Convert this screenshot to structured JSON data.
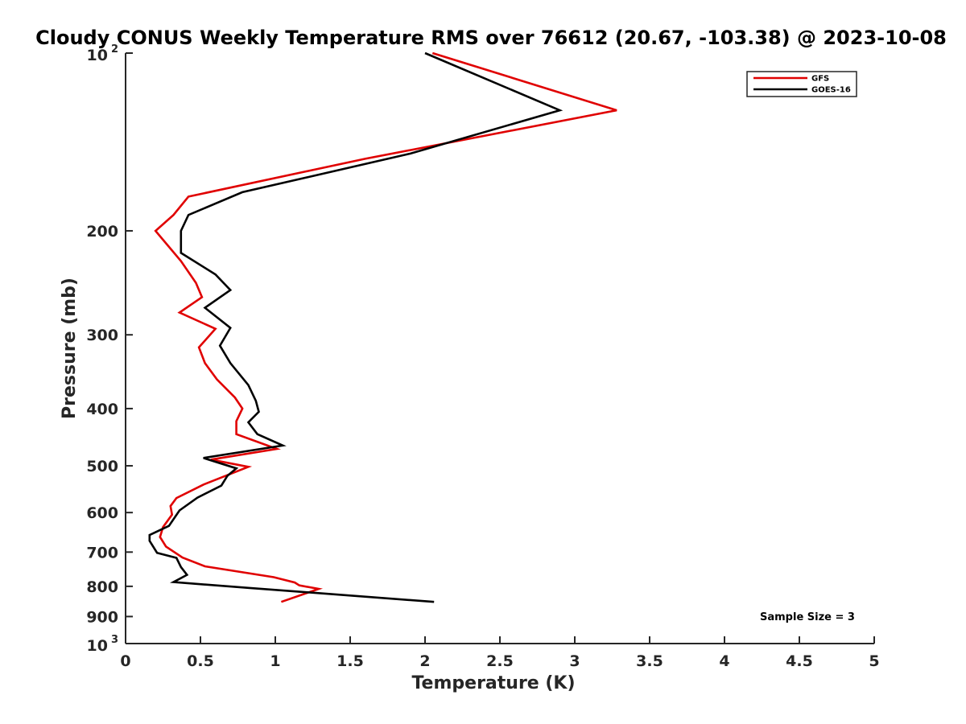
{
  "chart_data": {
    "type": "line",
    "title": "Cloudy CONUS Weekly Temperature RMS over 76612 (20.67, -103.38) @ 2023-10-08",
    "xlabel": "Temperature (K)",
    "ylabel": "Pressure (mb)",
    "xlim": [
      0,
      5
    ],
    "ylim": [
      100,
      1000
    ],
    "yscale": "log",
    "y_reversed": true,
    "xticks": [
      0,
      0.5,
      1,
      1.5,
      2,
      2.5,
      3,
      3.5,
      4,
      4.5,
      5
    ],
    "xtick_labels": [
      "0",
      "0.5",
      "1",
      "1.5",
      "2",
      "2.5",
      "3",
      "3.5",
      "4",
      "4.5",
      "5"
    ],
    "yticks": [
      {
        "value": 100,
        "base": "10",
        "exp": "2"
      },
      {
        "value": 200,
        "label": "200"
      },
      {
        "value": 300,
        "label": "300"
      },
      {
        "value": 400,
        "label": "400"
      },
      {
        "value": 500,
        "label": "500"
      },
      {
        "value": 600,
        "label": "600"
      },
      {
        "value": 700,
        "label": "700"
      },
      {
        "value": 800,
        "label": "800"
      },
      {
        "value": 900,
        "label": "900"
      },
      {
        "value": 1000,
        "base": "10",
        "exp": "3"
      }
    ],
    "legend_position": "top-right",
    "annotation": "Sample Size = 3",
    "series": [
      {
        "name": "GFS",
        "color": "#e00000",
        "points": [
          [
            2.05,
            100
          ],
          [
            3.28,
            125
          ],
          [
            1.6,
            151
          ],
          [
            0.42,
            175
          ],
          [
            0.32,
            188
          ],
          [
            0.2,
            200
          ],
          [
            0.37,
            225
          ],
          [
            0.47,
            245
          ],
          [
            0.51,
            259
          ],
          [
            0.36,
            275
          ],
          [
            0.6,
            293
          ],
          [
            0.49,
            315
          ],
          [
            0.53,
            335
          ],
          [
            0.61,
            357
          ],
          [
            0.73,
            383
          ],
          [
            0.78,
            400
          ],
          [
            0.74,
            420
          ],
          [
            0.74,
            442
          ],
          [
            1.01,
            468
          ],
          [
            0.57,
            488
          ],
          [
            0.82,
            502
          ],
          [
            0.52,
            538
          ],
          [
            0.34,
            567
          ],
          [
            0.3,
            585
          ],
          [
            0.31,
            605
          ],
          [
            0.25,
            635
          ],
          [
            0.23,
            660
          ],
          [
            0.27,
            685
          ],
          [
            0.38,
            715
          ],
          [
            0.53,
            740
          ],
          [
            0.99,
            772
          ],
          [
            1.13,
            788
          ],
          [
            1.16,
            797
          ],
          [
            1.29,
            808
          ],
          [
            1.04,
            850
          ]
        ]
      },
      {
        "name": "GOES-16",
        "color": "#000000",
        "points": [
          [
            2.0,
            100
          ],
          [
            2.9,
            125
          ],
          [
            1.9,
            148
          ],
          [
            0.78,
            172
          ],
          [
            0.42,
            188
          ],
          [
            0.37,
            200
          ],
          [
            0.37,
            218
          ],
          [
            0.6,
            237
          ],
          [
            0.7,
            252
          ],
          [
            0.53,
            270
          ],
          [
            0.7,
            292
          ],
          [
            0.63,
            313
          ],
          [
            0.7,
            335
          ],
          [
            0.82,
            365
          ],
          [
            0.87,
            388
          ],
          [
            0.89,
            405
          ],
          [
            0.82,
            422
          ],
          [
            0.88,
            442
          ],
          [
            1.05,
            462
          ],
          [
            0.52,
            485
          ],
          [
            0.74,
            505
          ],
          [
            0.68,
            520
          ],
          [
            0.64,
            540
          ],
          [
            0.48,
            566
          ],
          [
            0.36,
            595
          ],
          [
            0.29,
            632
          ],
          [
            0.16,
            655
          ],
          [
            0.16,
            670
          ],
          [
            0.21,
            702
          ],
          [
            0.34,
            716
          ],
          [
            0.37,
            742
          ],
          [
            0.41,
            765
          ],
          [
            0.32,
            787
          ],
          [
            0.83,
            805
          ],
          [
            2.06,
            850
          ]
        ]
      }
    ]
  }
}
